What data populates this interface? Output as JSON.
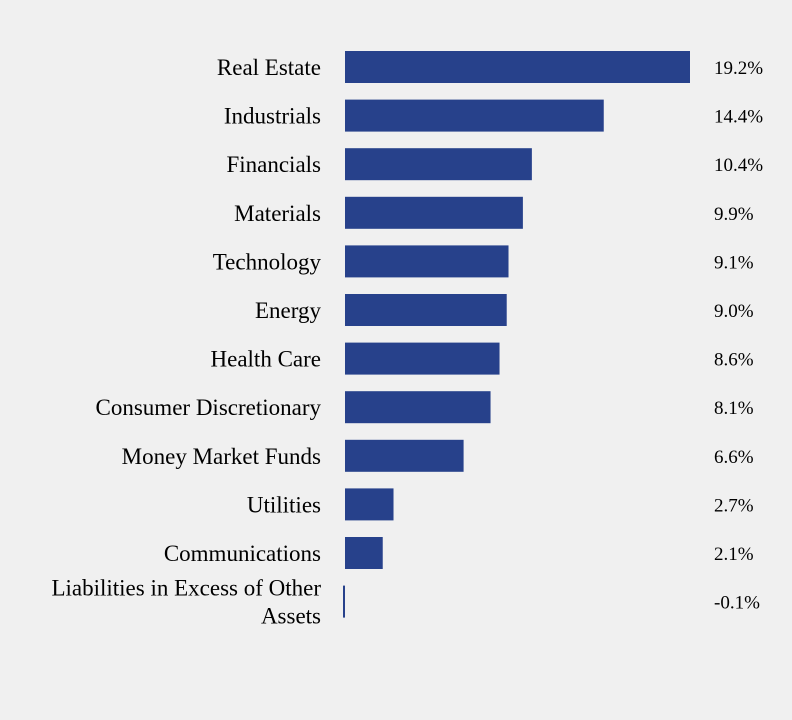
{
  "chart_data": {
    "type": "bar",
    "orientation": "horizontal",
    "title": "",
    "xlabel": "",
    "ylabel": "",
    "categories": [
      "Real Estate",
      "Industrials",
      "Financials",
      "Materials",
      "Technology",
      "Energy",
      "Health Care",
      "Consumer Discretionary",
      "Money Market Funds",
      "Utilities",
      "Communications",
      "Liabilities in Excess of Other Assets"
    ],
    "values": [
      19.2,
      14.4,
      10.4,
      9.9,
      9.1,
      9.0,
      8.6,
      8.1,
      6.6,
      2.7,
      2.1,
      -0.1
    ],
    "value_labels": [
      "19.2%",
      "14.4%",
      "10.4%",
      "9.9%",
      "9.1%",
      "9.0%",
      "8.6%",
      "8.1%",
      "6.6%",
      "2.7%",
      "2.1%",
      "-0.1%"
    ],
    "grid": false,
    "legend": "none",
    "colors": {
      "bar": "#27418b",
      "background": "#f0f0f0"
    }
  }
}
